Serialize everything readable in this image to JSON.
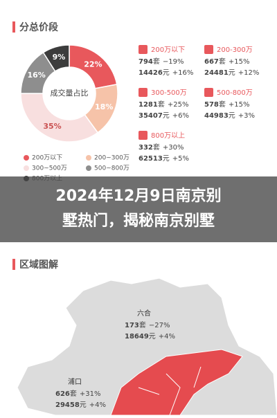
{
  "chart_data": {
    "type": "pie",
    "title": "分总价段",
    "center_label": "成交量占比",
    "categories": [
      "200万以下",
      "200~300万",
      "300~500万",
      "500~800万",
      "800万以上"
    ],
    "values": [
      22,
      18,
      35,
      16,
      9
    ],
    "value_labels": [
      "22%",
      "18%",
      "35%",
      "16%",
      "9%"
    ],
    "colors": [
      "#e8585c",
      "#f6c3a9",
      "#f8dfdf",
      "#8e8e8e",
      "#3c3c3c"
    ],
    "label_colors": [
      "#ffffff",
      "#ffffff",
      "#c95050",
      "#ffffff",
      "#ffffff"
    ]
  },
  "segments": [
    {
      "label": "200万以下",
      "count": "794",
      "count_unit": "套",
      "count_change": "−19%",
      "price": "14426",
      "price_unit": "元",
      "price_change": "+16%"
    },
    {
      "label": "200-300万",
      "count": "667",
      "count_unit": "套",
      "count_change": "+15%",
      "price": "24481",
      "price_unit": "元",
      "price_change": "+12%"
    },
    {
      "label": "300-500万",
      "count": "1281",
      "count_unit": "套",
      "count_change": "+25%",
      "price": "35407",
      "price_unit": "元",
      "price_change": "+6%"
    },
    {
      "label": "500-800万",
      "count": "578",
      "count_unit": "套",
      "count_change": "+15%",
      "price": "44983",
      "price_unit": "元",
      "price_change": "+3%"
    },
    {
      "label": "800万以上",
      "count": "332",
      "count_unit": "套",
      "count_change": "+30%",
      "price": "62513",
      "price_unit": "元",
      "price_change": "+5%"
    }
  ],
  "overlay_title": [
    "2024年12月9日南京别",
    "墅热门，揭秘南京别墅"
  ],
  "map": {
    "title": "区域图解",
    "regions": [
      {
        "name": "六合",
        "count": "173",
        "count_unit": "套",
        "count_change": "−27%",
        "price": "18649",
        "price_unit": "元",
        "price_change": "+4%"
      },
      {
        "name": "浦口",
        "count": "626",
        "count_unit": "套",
        "count_change": "+31%",
        "price": "29458",
        "price_unit": "元",
        "price_change": "+4%"
      }
    ]
  }
}
